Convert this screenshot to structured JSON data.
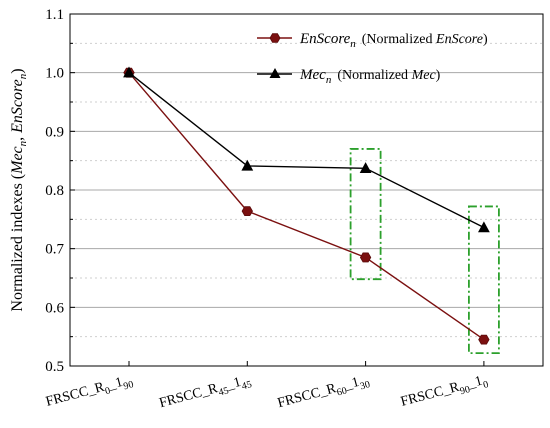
{
  "chart_data": {
    "type": "line",
    "categories": [
      {
        "base": "FRSCC_R",
        "sub1": "0",
        "mid": "_1",
        "sub2": "90"
      },
      {
        "base": "FRSCC_R",
        "sub1": "45",
        "mid": "_1",
        "sub2": "45"
      },
      {
        "base": "FRSCC_R",
        "sub1": "60",
        "mid": "_1",
        "sub2": "30"
      },
      {
        "base": "FRSCC_R",
        "sub1": "90",
        "mid": "_1",
        "sub2": "0"
      }
    ],
    "ylabel": {
      "prefix": "Normalized indexes (",
      "mec": "Mec",
      "mec_sub": "n",
      "sep": ", ",
      "enscore": "EnScore",
      "enscore_sub": "n",
      "suffix": ")"
    },
    "ylim": [
      0.5,
      1.1
    ],
    "yticks": [
      "0.5",
      "0.6",
      "0.7",
      "0.8",
      "0.9",
      "1.0",
      "1.1"
    ],
    "series": [
      {
        "name": "EnScore_n",
        "legend": {
          "main": "EnScore",
          "sub": "n",
          "desc_pre": "(Normalized ",
          "desc_it": "EnScore",
          "desc_post": ")"
        },
        "values": [
          1.0,
          0.764,
          0.685,
          0.545
        ],
        "color": "#7b1010",
        "marker": "hexagon"
      },
      {
        "name": "Mec_n",
        "legend": {
          "main": "Mec",
          "sub": "n",
          "desc_pre": "(Normalized ",
          "desc_it": "Mec",
          "desc_post": ")"
        },
        "values": [
          1.0,
          0.841,
          0.837,
          0.736
        ],
        "color": "#000000",
        "marker": "triangle"
      }
    ],
    "grid": "horizontal",
    "legend_position": "top-right",
    "highlight_color": "#2ca02c",
    "highlights": [
      {
        "category_index": 2,
        "ymin": 0.648,
        "ymax": 0.87
      },
      {
        "category_index": 3,
        "ymin": 0.522,
        "ymax": 0.772
      }
    ]
  }
}
